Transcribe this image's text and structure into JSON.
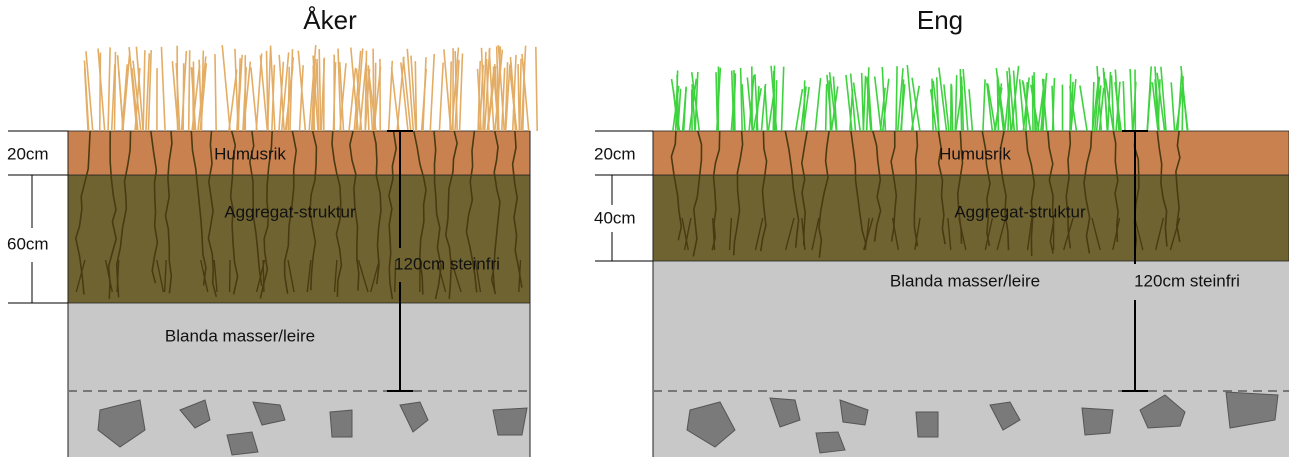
{
  "panels": [
    {
      "title": "Åker",
      "layers": [
        {
          "depth": "20cm",
          "label": "Humusrik"
        },
        {
          "depth": "60cm",
          "label": "Aggregat-struktur"
        },
        {
          "label": "Blanda masser/leire"
        }
      ],
      "dimension": "120cm steinfri"
    },
    {
      "title": "Eng",
      "layers": [
        {
          "depth": "20cm",
          "label": "Humusrik"
        },
        {
          "depth": "40cm",
          "label": "Aggregat-struktur"
        },
        {
          "label": "Blanda masser/leire"
        }
      ],
      "dimension": "120cm steinfri"
    }
  ]
}
